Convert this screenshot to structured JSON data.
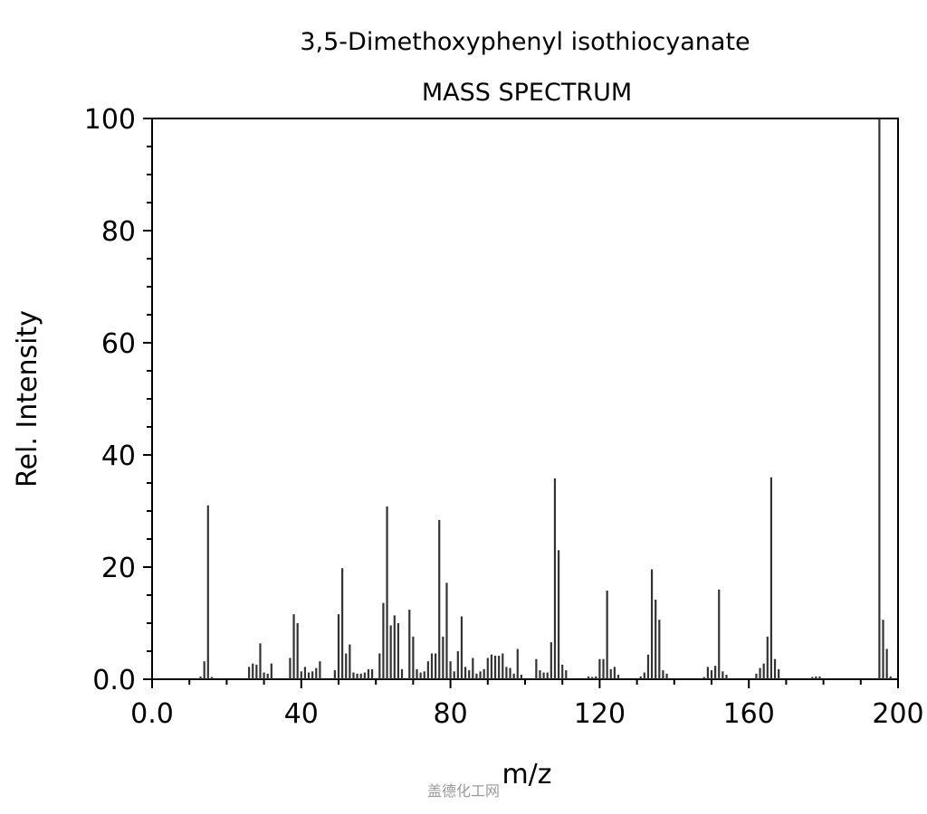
{
  "chart_data": {
    "type": "bar",
    "title": "3,5-Dimethoxyphenyl isothiocyanate",
    "subtitle": "MASS SPECTRUM",
    "xlabel": "m/z",
    "ylabel": "Rel. Intensity",
    "xlim": [
      0,
      200
    ],
    "ylim": [
      0,
      100
    ],
    "x_ticks": [
      "0.0",
      "40",
      "80",
      "120",
      "160",
      "200"
    ],
    "y_ticks": [
      "0.0",
      "20",
      "40",
      "60",
      "80",
      "100"
    ],
    "grid": false,
    "peaks": [
      {
        "mz": 13,
        "intensity": 0.5
      },
      {
        "mz": 14,
        "intensity": 3.2
      },
      {
        "mz": 15,
        "intensity": 31
      },
      {
        "mz": 16,
        "intensity": 0.4
      },
      {
        "mz": 26,
        "intensity": 2.2
      },
      {
        "mz": 27,
        "intensity": 2.8
      },
      {
        "mz": 28,
        "intensity": 2.6
      },
      {
        "mz": 29,
        "intensity": 6.4
      },
      {
        "mz": 30,
        "intensity": 1.2
      },
      {
        "mz": 31,
        "intensity": 1.0
      },
      {
        "mz": 32,
        "intensity": 2.8
      },
      {
        "mz": 37,
        "intensity": 3.8
      },
      {
        "mz": 38,
        "intensity": 11.6
      },
      {
        "mz": 39,
        "intensity": 10
      },
      {
        "mz": 40,
        "intensity": 1.4
      },
      {
        "mz": 41,
        "intensity": 2.2
      },
      {
        "mz": 42,
        "intensity": 1.2
      },
      {
        "mz": 43,
        "intensity": 1.4
      },
      {
        "mz": 44,
        "intensity": 2.0
      },
      {
        "mz": 45,
        "intensity": 3.2
      },
      {
        "mz": 49,
        "intensity": 1.6
      },
      {
        "mz": 50,
        "intensity": 11.6
      },
      {
        "mz": 51,
        "intensity": 19.8
      },
      {
        "mz": 52,
        "intensity": 4.6
      },
      {
        "mz": 53,
        "intensity": 6.2
      },
      {
        "mz": 54,
        "intensity": 1.2
      },
      {
        "mz": 55,
        "intensity": 1.0
      },
      {
        "mz": 56,
        "intensity": 1.0
      },
      {
        "mz": 57,
        "intensity": 1.2
      },
      {
        "mz": 58,
        "intensity": 1.8
      },
      {
        "mz": 59,
        "intensity": 1.8
      },
      {
        "mz": 61,
        "intensity": 4.6
      },
      {
        "mz": 62,
        "intensity": 13.6
      },
      {
        "mz": 63,
        "intensity": 30.8
      },
      {
        "mz": 64,
        "intensity": 9.6
      },
      {
        "mz": 65,
        "intensity": 11.4
      },
      {
        "mz": 66,
        "intensity": 10
      },
      {
        "mz": 67,
        "intensity": 1.8
      },
      {
        "mz": 69,
        "intensity": 12.4
      },
      {
        "mz": 70,
        "intensity": 7.6
      },
      {
        "mz": 71,
        "intensity": 1.8
      },
      {
        "mz": 72,
        "intensity": 1.2
      },
      {
        "mz": 73,
        "intensity": 1.4
      },
      {
        "mz": 74,
        "intensity": 3.2
      },
      {
        "mz": 75,
        "intensity": 4.6
      },
      {
        "mz": 76,
        "intensity": 4.6
      },
      {
        "mz": 77,
        "intensity": 28.4
      },
      {
        "mz": 78,
        "intensity": 7.6
      },
      {
        "mz": 79,
        "intensity": 17.2
      },
      {
        "mz": 80,
        "intensity": 3.2
      },
      {
        "mz": 81,
        "intensity": 1.4
      },
      {
        "mz": 82,
        "intensity": 5.0
      },
      {
        "mz": 83,
        "intensity": 11.2
      },
      {
        "mz": 84,
        "intensity": 2.2
      },
      {
        "mz": 85,
        "intensity": 1.6
      },
      {
        "mz": 86,
        "intensity": 3.8
      },
      {
        "mz": 87,
        "intensity": 1.0
      },
      {
        "mz": 88,
        "intensity": 1.4
      },
      {
        "mz": 89,
        "intensity": 1.8
      },
      {
        "mz": 90,
        "intensity": 3.8
      },
      {
        "mz": 91,
        "intensity": 4.4
      },
      {
        "mz": 92,
        "intensity": 4.2
      },
      {
        "mz": 93,
        "intensity": 4.2
      },
      {
        "mz": 94,
        "intensity": 4.6
      },
      {
        "mz": 95,
        "intensity": 2.2
      },
      {
        "mz": 96,
        "intensity": 2.0
      },
      {
        "mz": 97,
        "intensity": 1.0
      },
      {
        "mz": 98,
        "intensity": 5.4
      },
      {
        "mz": 99,
        "intensity": 0.8
      },
      {
        "mz": 103,
        "intensity": 3.6
      },
      {
        "mz": 104,
        "intensity": 1.6
      },
      {
        "mz": 105,
        "intensity": 1.2
      },
      {
        "mz": 106,
        "intensity": 1.2
      },
      {
        "mz": 107,
        "intensity": 6.6
      },
      {
        "mz": 108,
        "intensity": 35.8
      },
      {
        "mz": 109,
        "intensity": 23
      },
      {
        "mz": 110,
        "intensity": 2.6
      },
      {
        "mz": 111,
        "intensity": 1.6
      },
      {
        "mz": 117,
        "intensity": 0.5
      },
      {
        "mz": 118,
        "intensity": 0.4
      },
      {
        "mz": 119,
        "intensity": 0.5
      },
      {
        "mz": 120,
        "intensity": 3.6
      },
      {
        "mz": 121,
        "intensity": 3.6
      },
      {
        "mz": 122,
        "intensity": 15.8
      },
      {
        "mz": 123,
        "intensity": 1.8
      },
      {
        "mz": 124,
        "intensity": 2.2
      },
      {
        "mz": 125,
        "intensity": 0.8
      },
      {
        "mz": 131,
        "intensity": 0.5
      },
      {
        "mz": 132,
        "intensity": 1.2
      },
      {
        "mz": 133,
        "intensity": 4.4
      },
      {
        "mz": 134,
        "intensity": 19.6
      },
      {
        "mz": 135,
        "intensity": 14.2
      },
      {
        "mz": 136,
        "intensity": 10.6
      },
      {
        "mz": 137,
        "intensity": 1.6
      },
      {
        "mz": 138,
        "intensity": 1.0
      },
      {
        "mz": 148,
        "intensity": 0.4
      },
      {
        "mz": 149,
        "intensity": 2.2
      },
      {
        "mz": 150,
        "intensity": 1.6
      },
      {
        "mz": 151,
        "intensity": 2.4
      },
      {
        "mz": 152,
        "intensity": 16
      },
      {
        "mz": 153,
        "intensity": 1.4
      },
      {
        "mz": 154,
        "intensity": 0.8
      },
      {
        "mz": 162,
        "intensity": 1.0
      },
      {
        "mz": 163,
        "intensity": 2.0
      },
      {
        "mz": 164,
        "intensity": 2.8
      },
      {
        "mz": 165,
        "intensity": 7.6
      },
      {
        "mz": 166,
        "intensity": 36
      },
      {
        "mz": 167,
        "intensity": 3.6
      },
      {
        "mz": 168,
        "intensity": 1.8
      },
      {
        "mz": 177,
        "intensity": 0.4
      },
      {
        "mz": 178,
        "intensity": 0.5
      },
      {
        "mz": 179,
        "intensity": 0.5
      },
      {
        "mz": 195,
        "intensity": 100
      },
      {
        "mz": 196,
        "intensity": 10.6
      },
      {
        "mz": 197,
        "intensity": 5.4
      },
      {
        "mz": 198,
        "intensity": 0.5
      }
    ]
  },
  "watermark": "盖德化工网",
  "colors": {
    "bar": "#333333",
    "axis": "#000000",
    "watermark": "#9a9a9a"
  }
}
